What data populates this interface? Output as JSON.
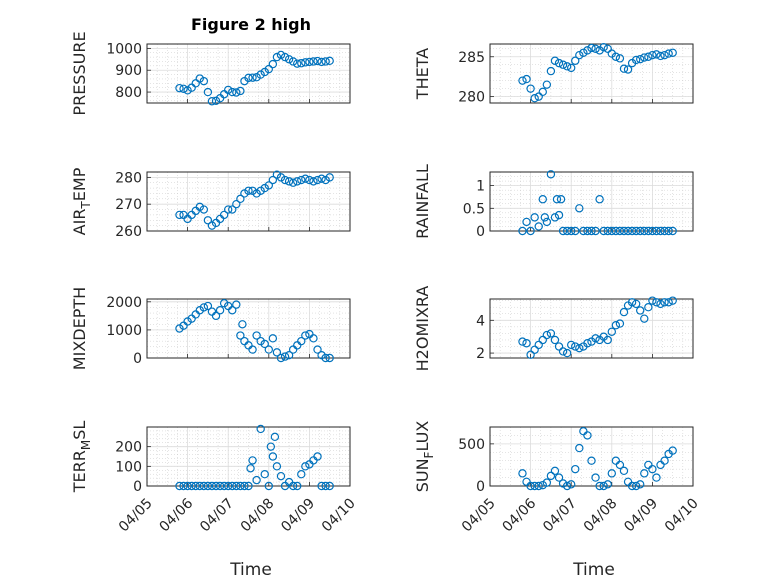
{
  "figure": {
    "title": "Figure 2 high",
    "xlabel": "Time",
    "marker_color": "#0072bd"
  },
  "chart_data": [
    {
      "type": "scatter",
      "id": "pressure",
      "ylabel": "PRESSURE",
      "ylabel_sub": "",
      "title": "Figure 2 high",
      "xlim": [
        "2023-04-05",
        "2023-04-10"
      ],
      "ylim": [
        750,
        1020
      ],
      "yticks": [
        800,
        900,
        1000
      ],
      "yticklabels": [
        "800",
        "900",
        "1000"
      ],
      "xticklabels": [],
      "series": [
        {
          "x_days": [
            0.8,
            0.9,
            1.0,
            1.1,
            1.2,
            1.3,
            1.4,
            1.5,
            1.6,
            1.7,
            1.8,
            1.9,
            2.0,
            2.1,
            2.2,
            2.3,
            2.4,
            2.5,
            2.6,
            2.7,
            2.8,
            2.9,
            3.0,
            3.1,
            3.2,
            3.3,
            3.4,
            3.5,
            3.6,
            3.7,
            3.8,
            3.9,
            4.0,
            4.1,
            4.2,
            4.3,
            4.4,
            4.5
          ],
          "y": [
            818,
            815,
            808,
            820,
            840,
            862,
            850,
            800,
            758,
            760,
            772,
            790,
            810,
            800,
            798,
            805,
            850,
            865,
            866,
            868,
            880,
            892,
            905,
            928,
            960,
            970,
            960,
            950,
            940,
            930,
            932,
            936,
            938,
            940,
            942,
            938,
            940,
            943
          ]
        }
      ]
    },
    {
      "type": "scatter",
      "id": "theta",
      "ylabel": "THETA",
      "ylabel_sub": "",
      "xlim": [
        "2023-04-05",
        "2023-04-10"
      ],
      "ylim": [
        279.2,
        286.6
      ],
      "yticks": [
        280,
        285
      ],
      "yticklabels": [
        "280",
        "285"
      ],
      "xticklabels": [],
      "series": [
        {
          "x_days": [
            0.8,
            0.9,
            1.0,
            1.1,
            1.2,
            1.3,
            1.4,
            1.5,
            1.6,
            1.7,
            1.8,
            1.9,
            2.0,
            2.1,
            2.2,
            2.3,
            2.4,
            2.5,
            2.6,
            2.7,
            2.8,
            2.9,
            3.0,
            3.1,
            3.2,
            3.3,
            3.4,
            3.5,
            3.6,
            3.7,
            3.8,
            3.9,
            4.0,
            4.1,
            4.2,
            4.3,
            4.4,
            4.5
          ],
          "y": [
            282.0,
            282.2,
            281.0,
            279.8,
            280.0,
            280.6,
            281.5,
            283.2,
            284.5,
            284.2,
            284.0,
            283.8,
            283.6,
            284.5,
            285.2,
            285.5,
            285.8,
            286.1,
            286.0,
            285.8,
            286.2,
            286.0,
            285.4,
            285.0,
            284.8,
            283.5,
            283.4,
            284.2,
            284.6,
            284.7,
            284.9,
            285.0,
            285.2,
            285.3,
            285.1,
            285.2,
            285.4,
            285.5
          ]
        }
      ]
    },
    {
      "type": "scatter",
      "id": "air_temp",
      "ylabel": "AIR",
      "ylabel_sub": "T",
      "ylabel_tail": "EMP",
      "xlim": [
        "2023-04-05",
        "2023-04-10"
      ],
      "ylim": [
        260,
        282
      ],
      "yticks": [
        260,
        270,
        280
      ],
      "yticklabels": [
        "260",
        "270",
        "280"
      ],
      "xticklabels": [],
      "series": [
        {
          "x_days": [
            0.8,
            0.9,
            1.0,
            1.1,
            1.2,
            1.3,
            1.4,
            1.5,
            1.6,
            1.7,
            1.8,
            1.9,
            2.0,
            2.1,
            2.2,
            2.3,
            2.4,
            2.5,
            2.6,
            2.7,
            2.8,
            2.9,
            3.0,
            3.1,
            3.2,
            3.3,
            3.4,
            3.5,
            3.6,
            3.7,
            3.8,
            3.9,
            4.0,
            4.1,
            4.2,
            4.3,
            4.4,
            4.5
          ],
          "y": [
            266,
            266,
            264.5,
            266,
            267.5,
            269,
            268,
            264,
            262,
            263,
            264.5,
            266,
            268,
            268,
            270,
            272,
            274,
            275,
            275,
            274,
            275,
            276,
            277,
            279,
            281,
            280,
            279,
            278.5,
            278,
            278.5,
            279,
            279.5,
            279,
            278.5,
            279,
            279.5,
            279,
            280
          ]
        }
      ]
    },
    {
      "type": "scatter",
      "id": "rainfall",
      "ylabel": "RAINFALL",
      "ylabel_sub": "",
      "xlim": [
        "2023-04-05",
        "2023-04-10"
      ],
      "ylim": [
        0,
        1.3
      ],
      "yticks": [
        0,
        0.5,
        1
      ],
      "yticklabels": [
        "0",
        "0.5",
        "1"
      ],
      "xticklabels": [],
      "series": [
        {
          "x_days": [
            0.8,
            0.9,
            1.0,
            1.1,
            1.2,
            1.3,
            1.35,
            1.4,
            1.5,
            1.6,
            1.65,
            1.7,
            1.75,
            1.8,
            1.9,
            2.0,
            2.1,
            2.2,
            2.3,
            2.4,
            2.5,
            2.6,
            2.7,
            2.8,
            2.9,
            3.0,
            3.1,
            3.2,
            3.3,
            3.4,
            3.5,
            3.6,
            3.7,
            3.8,
            3.9,
            4.0,
            4.1,
            4.2,
            4.3,
            4.4,
            4.5
          ],
          "y": [
            0,
            0.2,
            0,
            0.3,
            0.1,
            0.7,
            0.3,
            0.2,
            1.25,
            0.3,
            0.7,
            0.35,
            0.7,
            0,
            0,
            0,
            0,
            0.5,
            0,
            0,
            0,
            0,
            0.7,
            0,
            0,
            0,
            0,
            0,
            0,
            0,
            0,
            0,
            0,
            0,
            0,
            0,
            0,
            0,
            0,
            0,
            0
          ]
        }
      ]
    },
    {
      "type": "scatter",
      "id": "mixdepth",
      "ylabel": "MIXDEPTH",
      "ylabel_sub": "",
      "xlim": [
        "2023-04-05",
        "2023-04-10"
      ],
      "ylim": [
        0,
        2100
      ],
      "yticks": [
        0,
        1000,
        2000
      ],
      "yticklabels": [
        "0",
        "1000",
        "2000"
      ],
      "xticklabels": [],
      "series": [
        {
          "x_days": [
            0.8,
            0.9,
            1.0,
            1.1,
            1.2,
            1.3,
            1.4,
            1.5,
            1.6,
            1.7,
            1.8,
            1.9,
            2.0,
            2.1,
            2.2,
            2.3,
            2.35,
            2.4,
            2.5,
            2.6,
            2.7,
            2.8,
            2.9,
            3.0,
            3.1,
            3.2,
            3.3,
            3.4,
            3.5,
            3.6,
            3.7,
            3.8,
            3.9,
            4.0,
            4.1,
            4.2,
            4.3,
            4.4,
            4.5
          ],
          "y": [
            1050,
            1150,
            1300,
            1400,
            1550,
            1700,
            1800,
            1850,
            1650,
            1500,
            1700,
            1950,
            1850,
            1700,
            1900,
            800,
            1200,
            600,
            450,
            300,
            800,
            600,
            500,
            300,
            700,
            200,
            0,
            50,
            100,
            300,
            450,
            600,
            800,
            850,
            700,
            300,
            100,
            0,
            0
          ]
        }
      ]
    },
    {
      "type": "scatter",
      "id": "h2omixra",
      "ylabel": "H2OMIXRA",
      "ylabel_sub": "",
      "xlim": [
        "2023-04-05",
        "2023-04-10"
      ],
      "ylim": [
        1.7,
        5.3
      ],
      "yticks": [
        2,
        4
      ],
      "yticklabels": [
        "2",
        "4"
      ],
      "xticklabels": [],
      "series": [
        {
          "x_days": [
            0.8,
            0.9,
            1.0,
            1.1,
            1.2,
            1.3,
            1.4,
            1.5,
            1.6,
            1.7,
            1.8,
            1.9,
            2.0,
            2.1,
            2.2,
            2.3,
            2.4,
            2.5,
            2.6,
            2.7,
            2.8,
            2.9,
            3.0,
            3.1,
            3.2,
            3.3,
            3.4,
            3.5,
            3.6,
            3.7,
            3.8,
            3.9,
            4.0,
            4.1,
            4.2,
            4.3,
            4.4,
            4.5
          ],
          "y": [
            2.7,
            2.6,
            1.9,
            2.2,
            2.5,
            2.8,
            3.1,
            3.2,
            2.8,
            2.4,
            2.1,
            2.0,
            2.5,
            2.4,
            2.3,
            2.4,
            2.6,
            2.7,
            2.9,
            2.8,
            3.0,
            2.8,
            3.3,
            3.7,
            3.8,
            4.5,
            4.9,
            5.1,
            5.0,
            4.6,
            4.1,
            4.8,
            5.2,
            5.1,
            5.0,
            5.1,
            5.1,
            5.2
          ]
        }
      ]
    },
    {
      "type": "scatter",
      "id": "terr_msl",
      "ylabel": "TERR",
      "ylabel_sub": "M",
      "ylabel_tail": "SL",
      "xlim": [
        "2023-04-05",
        "2023-04-10"
      ],
      "ylim": [
        0,
        300
      ],
      "yticks": [
        0,
        100,
        200
      ],
      "yticklabels": [
        "0",
        "100",
        "200"
      ],
      "xticklabels": [
        "04/05",
        "04/06",
        "04/07",
        "04/08",
        "04/09",
        "04/10"
      ],
      "series": [
        {
          "x_days": [
            0.8,
            0.9,
            1.0,
            1.1,
            1.2,
            1.3,
            1.4,
            1.5,
            1.6,
            1.7,
            1.8,
            1.9,
            2.0,
            2.1,
            2.2,
            2.3,
            2.4,
            2.5,
            2.55,
            2.6,
            2.7,
            2.8,
            2.9,
            3.0,
            3.05,
            3.1,
            3.15,
            3.2,
            3.3,
            3.4,
            3.5,
            3.6,
            3.7,
            3.8,
            3.9,
            4.0,
            4.1,
            4.2,
            4.3,
            4.4,
            4.5
          ],
          "y": [
            0,
            0,
            0,
            0,
            0,
            0,
            0,
            0,
            0,
            0,
            0,
            0,
            0,
            0,
            0,
            0,
            0,
            0,
            90,
            130,
            30,
            290,
            60,
            0,
            200,
            150,
            250,
            100,
            50,
            0,
            20,
            0,
            0,
            60,
            100,
            110,
            130,
            150,
            0,
            0,
            0
          ]
        }
      ]
    },
    {
      "type": "scatter",
      "id": "sun_flux",
      "ylabel": "SUN",
      "ylabel_sub": "F",
      "ylabel_tail": "LUX",
      "xlim": [
        "2023-04-05",
        "2023-04-10"
      ],
      "ylim": [
        0,
        700
      ],
      "yticks": [
        0,
        500
      ],
      "yticklabels": [
        "0",
        "500"
      ],
      "xticklabels": [
        "04/05",
        "04/06",
        "04/07",
        "04/08",
        "04/09",
        "04/10"
      ],
      "series": [
        {
          "x_days": [
            0.8,
            0.9,
            1.0,
            1.1,
            1.2,
            1.3,
            1.4,
            1.5,
            1.6,
            1.7,
            1.8,
            1.9,
            2.0,
            2.1,
            2.2,
            2.3,
            2.4,
            2.5,
            2.6,
            2.7,
            2.8,
            2.9,
            3.0,
            3.1,
            3.2,
            3.3,
            3.4,
            3.5,
            3.6,
            3.7,
            3.8,
            3.9,
            4.0,
            4.1,
            4.2,
            4.3,
            4.4,
            4.5
          ],
          "y": [
            150,
            50,
            0,
            0,
            0,
            10,
            40,
            120,
            180,
            100,
            30,
            0,
            20,
            200,
            450,
            650,
            600,
            300,
            100,
            0,
            0,
            20,
            150,
            300,
            250,
            180,
            50,
            0,
            0,
            20,
            150,
            250,
            200,
            100,
            250,
            300,
            380,
            420
          ]
        }
      ]
    }
  ]
}
